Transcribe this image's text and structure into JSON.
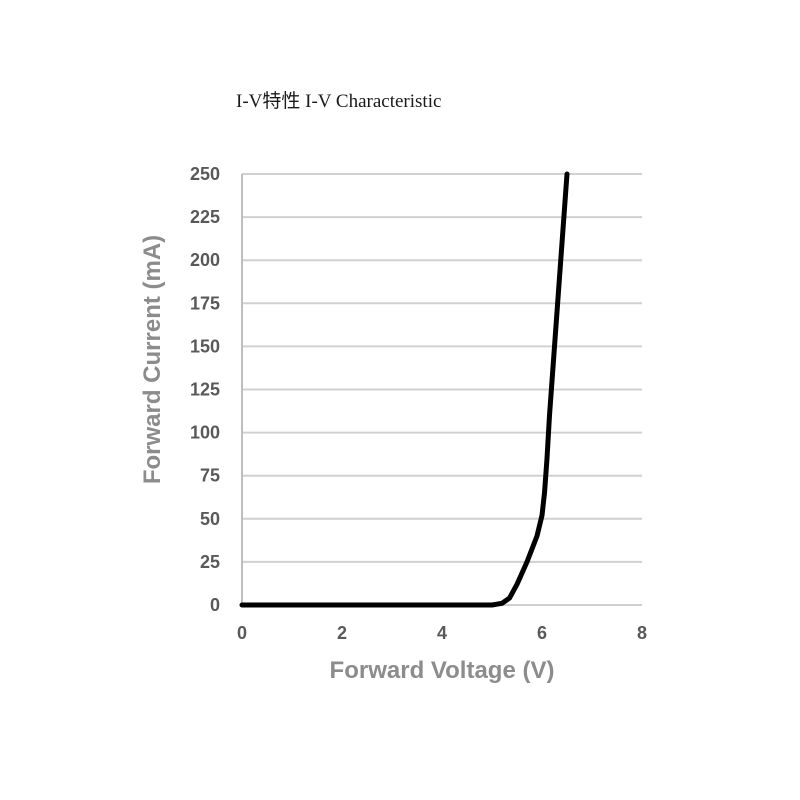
{
  "chart_data": {
    "type": "line",
    "title": "I-V特性 I-V Characteristic",
    "xlabel": "Forward Voltage (V)",
    "ylabel": "Forward Current (mA)",
    "xlim": [
      0,
      8
    ],
    "ylim": [
      0,
      250
    ],
    "x_ticks": [
      "0",
      "2",
      "4",
      "6",
      "8"
    ],
    "y_ticks": [
      "0",
      "25",
      "50",
      "75",
      "100",
      "125",
      "150",
      "175",
      "200",
      "225",
      "250"
    ],
    "grid": true,
    "legend": "none",
    "line_color": "#000000",
    "series": [
      {
        "x": [
          0,
          1,
          2,
          3,
          4,
          5,
          5.2,
          5.35,
          5.5,
          5.7,
          5.9,
          6.0,
          6.05,
          6.1,
          6.15,
          6.2,
          6.25,
          6.3,
          6.35,
          6.4,
          6.45,
          6.5
        ],
        "y": [
          0,
          0,
          0,
          0,
          0,
          0,
          1,
          4,
          12,
          25,
          40,
          52,
          65,
          85,
          110,
          130,
          150,
          170,
          190,
          210,
          230,
          250
        ]
      }
    ]
  }
}
